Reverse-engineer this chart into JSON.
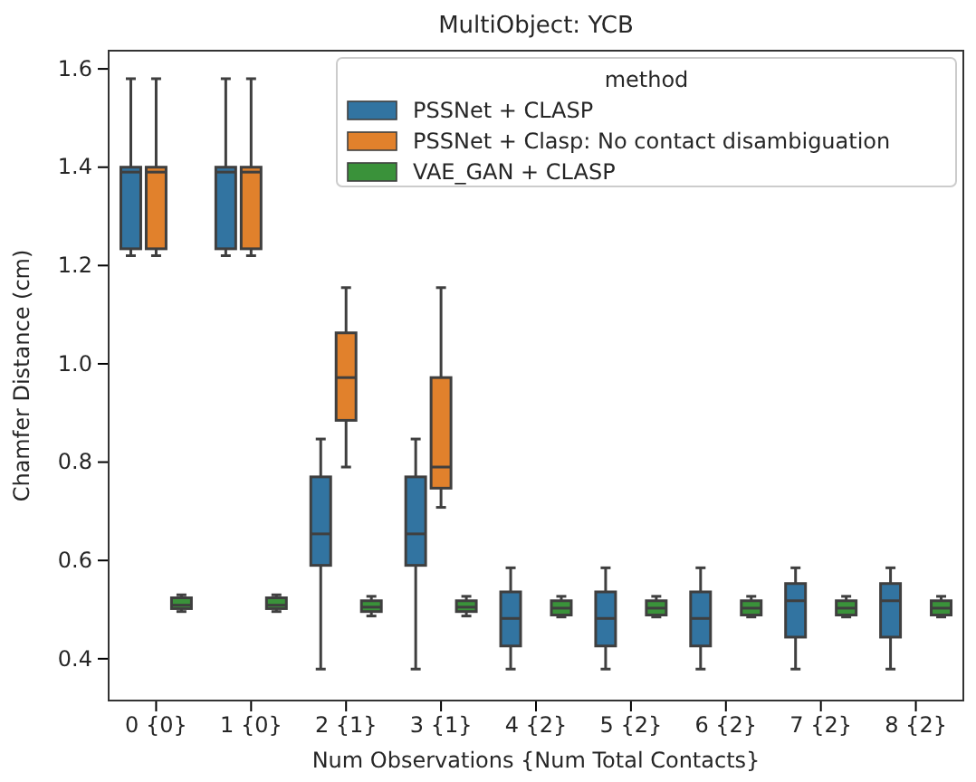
{
  "chart_data": {
    "type": "box",
    "title": "MultiObject: YCB",
    "xlabel": "Num Observations {Num Total Contacts}",
    "ylabel": "Chamfer Distance (cm)",
    "legend_title": "method",
    "legend": "top right",
    "categories": [
      "0 {0}",
      "1 {0}",
      "2 {1}",
      "3 {1}",
      "4 {2}",
      "5 {2}",
      "6 {2}",
      "7 {2}",
      "8 {2}"
    ],
    "ylim": [
      0.315,
      1.637
    ],
    "yticks": [
      0.4,
      0.6,
      0.8,
      {
        "value": 1,
        "label": "1.0"
      },
      1.2,
      1.4,
      1.6
    ],
    "series": [
      {
        "name": "PSSNet + CLASP",
        "color": "#3274a1",
        "boxes": [
          {
            "low": 1.22,
            "q1": 1.234,
            "median": 1.39,
            "q3": 1.4,
            "high": 1.58
          },
          {
            "low": 1.22,
            "q1": 1.234,
            "median": 1.39,
            "q3": 1.4,
            "high": 1.58
          },
          {
            "low": 0.379,
            "q1": 0.59,
            "median": 0.654,
            "q3": 0.77,
            "high": 0.847
          },
          {
            "low": 0.379,
            "q1": 0.59,
            "median": 0.654,
            "q3": 0.77,
            "high": 0.847
          },
          {
            "low": 0.379,
            "q1": 0.426,
            "median": 0.482,
            "q3": 0.536,
            "high": 0.585
          },
          {
            "low": 0.379,
            "q1": 0.426,
            "median": 0.482,
            "q3": 0.536,
            "high": 0.585
          },
          {
            "low": 0.379,
            "q1": 0.426,
            "median": 0.482,
            "q3": 0.536,
            "high": 0.585
          },
          {
            "low": 0.379,
            "q1": 0.444,
            "median": 0.518,
            "q3": 0.553,
            "high": 0.585
          },
          {
            "low": 0.379,
            "q1": 0.444,
            "median": 0.518,
            "q3": 0.553,
            "high": 0.585
          }
        ]
      },
      {
        "name": "PSSNet + Clasp: No contact disambiguation",
        "color": "#e1812c",
        "boxes": [
          {
            "low": 1.22,
            "q1": 1.234,
            "median": 1.39,
            "q3": 1.4,
            "high": 1.58
          },
          {
            "low": 1.22,
            "q1": 1.234,
            "median": 1.39,
            "q3": 1.4,
            "high": 1.58
          },
          {
            "low": 0.79,
            "q1": 0.885,
            "median": 0.972,
            "q3": 1.063,
            "high": 1.155
          },
          {
            "low": 0.708,
            "q1": 0.747,
            "median": 0.79,
            "q3": 0.972,
            "high": 1.155
          },
          null,
          null,
          null,
          null,
          null
        ]
      },
      {
        "name": "VAE_GAN + CLASP",
        "color": "#3a923a",
        "boxes": [
          {
            "low": 0.496,
            "q1": 0.502,
            "median": 0.509,
            "q3": 0.524,
            "high": 0.53
          },
          {
            "low": 0.496,
            "q1": 0.502,
            "median": 0.509,
            "q3": 0.524,
            "high": 0.53
          },
          {
            "low": 0.487,
            "q1": 0.496,
            "median": 0.505,
            "q3": 0.518,
            "high": 0.527
          },
          {
            "low": 0.487,
            "q1": 0.496,
            "median": 0.505,
            "q3": 0.518,
            "high": 0.527
          },
          {
            "low": 0.485,
            "q1": 0.489,
            "median": 0.503,
            "q3": 0.518,
            "high": 0.527
          },
          {
            "low": 0.485,
            "q1": 0.489,
            "median": 0.503,
            "q3": 0.518,
            "high": 0.527
          },
          {
            "low": 0.485,
            "q1": 0.489,
            "median": 0.503,
            "q3": 0.518,
            "high": 0.527
          },
          {
            "low": 0.485,
            "q1": 0.489,
            "median": 0.503,
            "q3": 0.518,
            "high": 0.527
          },
          {
            "low": 0.485,
            "q1": 0.489,
            "median": 0.503,
            "q3": 0.518,
            "high": 0.527
          }
        ]
      }
    ]
  }
}
